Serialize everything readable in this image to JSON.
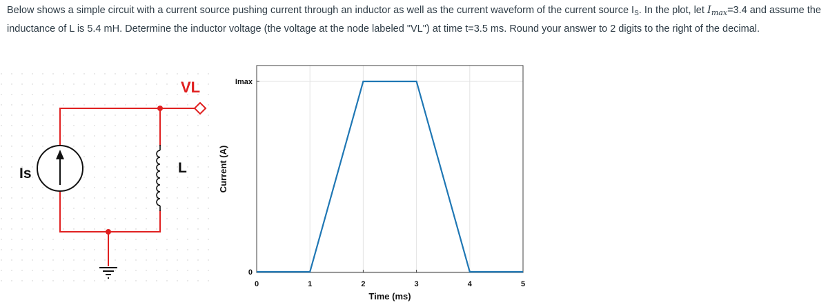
{
  "question": {
    "part1": "Below shows a simple circuit with a current source pushing current through an inductor as well as the current waveform of the current source I",
    "sub_s": "S",
    "part2": ". In the plot, let ",
    "imax_symbol": "I",
    "imax_sub": "max",
    "imax_eq": "=3.4",
    "part3": "and assume the inductance of L is 5.4 mH. Determine the inductor voltage (the voltage at the node labeled \"VL\") at time t=3.5 ms. Round your answer to 2 digits to the right of the decimal."
  },
  "circuit": {
    "source_label": "Is",
    "node_label": "VL",
    "inductor_label": "L",
    "wire_color": "#e02020",
    "node_color": "#e02020"
  },
  "chart_data": {
    "type": "line",
    "xlabel": "Time (ms)",
    "ylabel": "Current (A)",
    "x_ticks": [
      "0",
      "1",
      "2",
      "3",
      "4",
      "5"
    ],
    "y_ticks": [
      "0",
      "Imax"
    ],
    "xlim": [
      0,
      5
    ],
    "ylim": [
      0,
      1
    ],
    "grid": true,
    "line_color": "#1f77b4",
    "series": [
      {
        "x": [
          0,
          1,
          2,
          3,
          4,
          5
        ],
        "y": [
          0,
          0,
          1,
          1,
          0,
          0
        ]
      }
    ]
  }
}
